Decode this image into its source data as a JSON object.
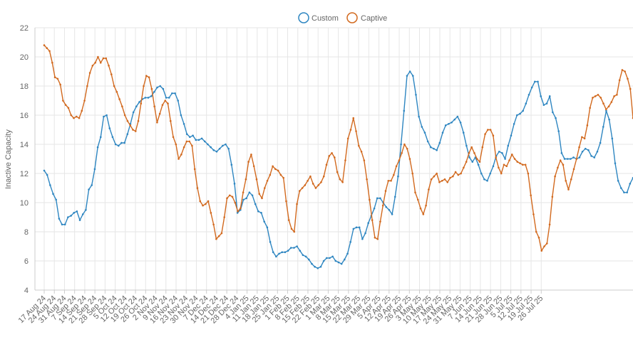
{
  "chart_data": {
    "type": "line",
    "title": "",
    "xlabel": "",
    "ylabel": "Inactive Capacity",
    "ylim": [
      4,
      22
    ],
    "y_ticks": [
      4,
      6,
      8,
      10,
      12,
      14,
      16,
      18,
      20,
      22
    ],
    "grid": true,
    "legend_position": "top-center",
    "x_tick_labels": [
      "17 Aug 24",
      "24 Aug 24",
      "31 Aug 24",
      "7 Sep 24",
      "14 Sep 24",
      "21 Sep 24",
      "28 Sep 24",
      "5 Oct 24",
      "12 Oct 24",
      "19 Oct 24",
      "26 Oct 24",
      "2 Nov 24",
      "9 Nov 24",
      "16 Nov 24",
      "23 Nov 24",
      "30 Nov 24",
      "7 Dec 24",
      "14 Dec 24",
      "21 Dec 24",
      "28 Dec 24",
      "4 Jan 25",
      "11 Jan 25",
      "18 Jan 25",
      "25 Jan 25",
      "1 Feb 25",
      "8 Feb 25",
      "15 Feb 25",
      "22 Feb 25",
      "1 Mar 25",
      "8 Mar 25",
      "15 Mar 25",
      "22 Mar 25",
      "29 Mar 25",
      "5 Apr 25",
      "12 Apr 25",
      "19 Apr 25",
      "26 Apr 25",
      "3 May 25",
      "10 May 25",
      "17 May 25",
      "24 May 25",
      "31 May 25",
      "7 Jun 25",
      "14 Jun 25",
      "21 Jun 25",
      "28 Jun 25",
      "5 Jul 25",
      "12 Jul 25",
      "19 Jul 25",
      "26 Jul 25"
    ],
    "series": [
      {
        "name": "Custom",
        "color": "#2e86c1",
        "values": [
          12.2,
          11.9,
          11.2,
          10.6,
          10.2,
          8.9,
          8.5,
          8.5,
          9.0,
          9.1,
          9.3,
          9.4,
          8.8,
          9.2,
          9.5,
          10.9,
          11.2,
          12.3,
          13.8,
          14.5,
          15.9,
          16.0,
          15.1,
          14.5,
          14.0,
          13.9,
          14.1,
          14.1,
          14.7,
          15.4,
          16.2,
          16.6,
          16.9,
          17.1,
          17.2,
          17.2,
          17.3,
          17.6,
          17.9,
          18.0,
          17.8,
          17.2,
          17.2,
          17.5,
          17.5,
          17.0,
          16.0,
          15.4,
          14.7,
          14.5,
          14.6,
          14.3,
          14.3,
          14.4,
          14.2,
          14.0,
          13.8,
          13.6,
          13.5,
          13.7,
          13.9,
          14.0,
          13.7,
          12.6,
          11.3,
          9.3,
          9.5,
          10.2,
          10.3,
          10.7,
          10.5,
          9.9,
          9.4,
          9.3,
          8.7,
          8.3,
          7.3,
          6.6,
          6.3,
          6.5,
          6.6,
          6.6,
          6.7,
          6.9,
          6.9,
          7.0,
          6.7,
          6.4,
          6.3,
          6.1,
          5.8,
          5.6,
          5.5,
          5.6,
          6.0,
          6.2,
          6.2,
          6.3,
          6.0,
          5.9,
          5.8,
          6.1,
          6.5,
          7.3,
          8.2,
          8.3,
          8.3,
          7.5,
          7.9,
          8.6,
          9.1,
          9.6,
          10.3,
          10.3,
          10.0,
          9.7,
          9.5,
          9.2,
          10.4,
          11.8,
          14.0,
          16.3,
          18.7,
          19.0,
          18.7,
          17.4,
          15.9,
          15.2,
          14.8,
          14.2,
          13.8,
          13.7,
          13.6,
          14.1,
          14.8,
          15.3,
          15.4,
          15.5,
          15.7,
          15.9,
          15.5,
          14.8,
          13.9,
          13.1,
          12.8,
          13.1,
          12.6,
          12.0,
          11.6,
          11.5,
          12.0,
          12.5,
          13.2,
          13.5,
          13.4,
          13.0,
          13.9,
          14.6,
          15.4,
          16.0,
          16.1,
          16.3,
          16.8,
          17.4,
          17.9,
          18.3,
          18.3,
          17.3,
          16.7,
          16.8,
          17.3,
          16.2,
          15.8,
          14.9,
          13.4,
          13.0,
          13.0,
          13.0,
          13.1,
          13.0,
          13.1,
          13.5,
          13.7,
          13.6,
          13.2,
          13.1,
          13.5,
          14.1,
          15.2,
          16.3,
          15.7,
          14.4,
          12.7,
          11.5,
          11.0,
          10.7,
          10.7,
          11.3,
          11.7
        ]
      },
      {
        "name": "Captive",
        "color": "#d2691e",
        "values": [
          20.8,
          20.6,
          20.4,
          19.6,
          18.6,
          18.5,
          18.1,
          17.0,
          16.7,
          16.5,
          16.0,
          15.8,
          15.9,
          15.8,
          16.3,
          17.0,
          18.0,
          18.9,
          19.4,
          19.6,
          20.0,
          19.6,
          19.9,
          19.9,
          19.4,
          18.8,
          18.0,
          17.6,
          17.1,
          16.6,
          16.0,
          15.6,
          15.3,
          15.0,
          14.9,
          15.6,
          16.8,
          18.0,
          18.7,
          18.6,
          17.8,
          16.6,
          15.5,
          16.1,
          16.7,
          17.0,
          16.8,
          15.6,
          14.5,
          14.0,
          13.0,
          13.3,
          13.8,
          14.2,
          14.2,
          13.9,
          12.3,
          11.0,
          10.1,
          9.8,
          9.9,
          10.1,
          9.3,
          8.5,
          7.5,
          7.7,
          7.9,
          9.0,
          10.3,
          10.5,
          10.4,
          10.0,
          9.4,
          9.6,
          10.7,
          11.6,
          12.8,
          13.3,
          12.5,
          11.6,
          10.6,
          10.3,
          11.0,
          11.5,
          11.9,
          12.5,
          12.3,
          12.2,
          11.9,
          11.7,
          10.1,
          8.8,
          8.2,
          8.0,
          9.9,
          10.8,
          11.0,
          11.2,
          11.5,
          11.8,
          11.3,
          11.0,
          11.2,
          11.4,
          11.8,
          12.6,
          13.2,
          13.4,
          13.1,
          12.1,
          11.6,
          11.4,
          12.9,
          14.4,
          15.0,
          15.8,
          14.9,
          13.9,
          13.5,
          12.9,
          11.6,
          10.2,
          8.8,
          7.6,
          7.5,
          8.7,
          9.8,
          10.8,
          11.5,
          11.5,
          11.9,
          12.5,
          12.9,
          13.4,
          14.0,
          13.7,
          13.0,
          12.0,
          10.7,
          10.2,
          9.6,
          9.2,
          9.8,
          10.9,
          11.6,
          11.8,
          12.0,
          11.4,
          11.5,
          11.6,
          11.4,
          11.7,
          11.8,
          12.1,
          11.9,
          12.0,
          12.4,
          12.8,
          13.4,
          13.8,
          13.4,
          13.0,
          12.8,
          13.8,
          14.7,
          15.0,
          15.0,
          14.6,
          13.1,
          12.4,
          12.0,
          12.6,
          12.5,
          12.9,
          13.3,
          13.0,
          12.8,
          12.7,
          12.6,
          12.6,
          12.0,
          10.5,
          9.2,
          8.0,
          7.6,
          6.7,
          7.0,
          7.2,
          8.5,
          10.4,
          11.8,
          12.4,
          12.9,
          12.6,
          11.5,
          10.9,
          11.6,
          12.3,
          13.0,
          13.8,
          14.5,
          14.4,
          15.3,
          16.5,
          17.2,
          17.3,
          17.4,
          17.2,
          16.8,
          16.4,
          16.6,
          16.9,
          17.3,
          17.4,
          18.4,
          19.1,
          19.0,
          18.5,
          17.8,
          15.8
        ]
      }
    ]
  }
}
